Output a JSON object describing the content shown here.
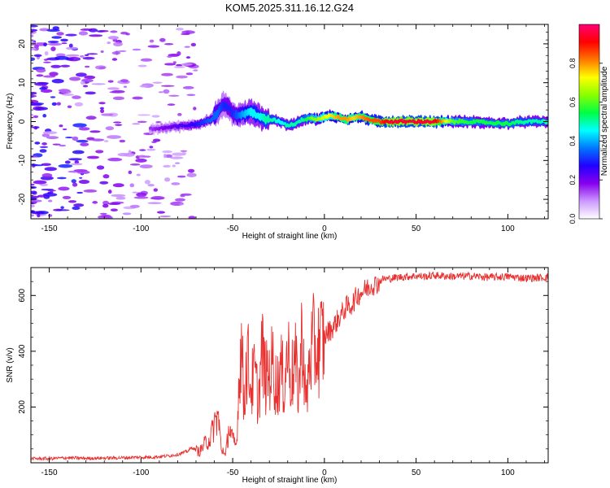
{
  "chart_data": [
    {
      "type": "heatmap",
      "title": "KOM5.2025.311.16.12.G24",
      "xlabel": "Height of straight line (km)",
      "ylabel": "Frequency (Hz)",
      "xlim": [
        -160,
        122
      ],
      "ylim": [
        -25,
        25
      ],
      "xticks": [
        -150,
        -100,
        -50,
        0,
        50,
        100
      ],
      "yticks": [
        20,
        10,
        0,
        -10,
        -20
      ],
      "colorbar": {
        "label": "Normalized spectral amplitude",
        "range": [
          0,
          1
        ],
        "ticks": [
          "0.0",
          "0.2",
          "0.4",
          "0.6",
          "0.8"
        ],
        "colors": [
          "#ffffff",
          "#cc99ff",
          "#8800ee",
          "#2200ff",
          "#0077ff",
          "#00ffff",
          "#00ff44",
          "#88ff00",
          "#ffff00",
          "#ff7700",
          "#ff0000",
          "#ff0077"
        ]
      },
      "ridge": {
        "x": [
          -95,
          -85,
          -75,
          -68,
          -62,
          -58,
          -55,
          -52,
          -50,
          -47,
          -44,
          -40,
          -36,
          -32,
          -28,
          -24,
          -20,
          -16,
          -12,
          -8,
          -4,
          0,
          4,
          8,
          12,
          16,
          20,
          25,
          30,
          35,
          40,
          50,
          60,
          70,
          80,
          90,
          100,
          110,
          122
        ],
        "freq": [
          -2,
          -1.5,
          -1,
          -0.5,
          0.5,
          2.5,
          4.5,
          3.5,
          2,
          1.5,
          2,
          2.5,
          1.5,
          0.5,
          0.5,
          0,
          -1,
          -0.5,
          0.5,
          1,
          0.5,
          1.2,
          1.5,
          1,
          0.5,
          1,
          1.2,
          0.5,
          0,
          0,
          0,
          0,
          0,
          0,
          0,
          -0.3,
          -0.5,
          0,
          0
        ],
        "amplitude": [
          0.15,
          0.2,
          0.25,
          0.3,
          0.35,
          0.35,
          0.3,
          0.3,
          0.3,
          0.35,
          0.4,
          0.45,
          0.45,
          0.5,
          0.5,
          0.45,
          0.5,
          0.5,
          0.5,
          0.6,
          0.65,
          0.7,
          0.75,
          0.8,
          0.8,
          0.75,
          0.8,
          0.85,
          0.85,
          0.95,
          0.95,
          0.95,
          0.95,
          0.6,
          0.55,
          0.55,
          0.55,
          0.5,
          0.5
        ]
      }
    },
    {
      "type": "line",
      "xlabel": "Height of straight line (km)",
      "ylabel": "SNR (v/v)",
      "xlim": [
        -160,
        122
      ],
      "ylim": [
        0,
        700
      ],
      "xticks": [
        -150,
        -100,
        -50,
        0,
        50,
        100
      ],
      "yticks": [
        200,
        400,
        600
      ],
      "series": [
        {
          "name": "SNR",
          "color": "#e8302f",
          "x": [
            -160,
            -150,
            -140,
            -130,
            -120,
            -110,
            -100,
            -95,
            -90,
            -85,
            -80,
            -75,
            -72,
            -70,
            -68,
            -65,
            -62,
            -60,
            -58,
            -56,
            -55,
            -54,
            -52,
            -50,
            -48,
            -46,
            -45,
            -44,
            -42,
            -40,
            -38,
            -36,
            -34,
            -32,
            -30,
            -28,
            -26,
            -24,
            -22,
            -20,
            -18,
            -16,
            -14,
            -12,
            -10,
            -8,
            -6,
            -4,
            -2,
            0,
            2,
            4,
            6,
            8,
            10,
            12,
            14,
            16,
            18,
            20,
            22,
            24,
            26,
            28,
            30,
            32,
            35,
            40,
            45,
            50,
            55,
            60,
            70,
            80,
            90,
            100,
            110,
            122
          ],
          "values": [
            15,
            15,
            18,
            16,
            17,
            18,
            20,
            20,
            22,
            25,
            30,
            40,
            55,
            45,
            40,
            70,
            90,
            140,
            170,
            40,
            50,
            20,
            130,
            80,
            60,
            380,
            420,
            220,
            380,
            270,
            320,
            220,
            400,
            300,
            320,
            360,
            260,
            340,
            280,
            410,
            300,
            360,
            260,
            480,
            200,
            380,
            420,
            400,
            430,
            450,
            470,
            480,
            500,
            520,
            540,
            560,
            560,
            580,
            600,
            610,
            620,
            630,
            640,
            640,
            650,
            660,
            660,
            665,
            668,
            670,
            668,
            672,
            668,
            670,
            665,
            668,
            662,
            665
          ]
        }
      ]
    }
  ]
}
